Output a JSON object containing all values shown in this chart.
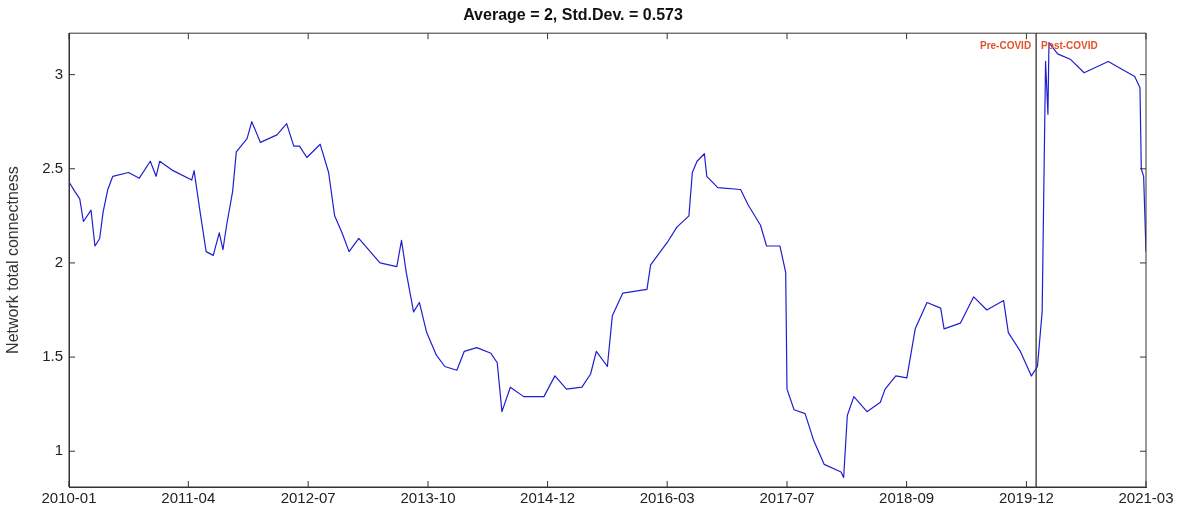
{
  "chart_data": {
    "type": "line",
    "title": "Average = 2, Std.Dev. = 0.573",
    "ylabel": "Network total connectness",
    "x": [
      "2010-01-01",
      "2010-01-23",
      "2010-02-11",
      "2010-02-25",
      "2010-03-26",
      "2010-04-10",
      "2010-04-28",
      "2010-05-11",
      "2010-05-29",
      "2010-06-17",
      "2010-08-16",
      "2010-09-26",
      "2010-11-07",
      "2010-11-29",
      "2010-12-13",
      "2011-02-02",
      "2011-04-14",
      "2011-04-23",
      "2011-05-16",
      "2011-06-08",
      "2011-07-05",
      "2011-07-28",
      "2011-08-11",
      "2011-08-25",
      "2011-09-17",
      "2011-10-01",
      "2011-11-11",
      "2011-11-29",
      "2012-01-01",
      "2012-03-04",
      "2012-04-10",
      "2012-05-07",
      "2012-05-29",
      "2012-06-26",
      "2012-08-16",
      "2012-09-17",
      "2012-10-10",
      "2012-11-07",
      "2012-12-04",
      "2013-01-10",
      "2013-04-01",
      "2013-06-04",
      "2013-06-22",
      "2013-07-10",
      "2013-08-07",
      "2013-08-29",
      "2013-09-26",
      "2013-11-02",
      "2013-12-04",
      "2014-01-19",
      "2014-02-16",
      "2014-04-05",
      "2014-05-29",
      "2014-06-22",
      "2014-07-10",
      "2014-08-11",
      "2014-10-01",
      "2014-12-17",
      "2015-01-28",
      "2015-03-13",
      "2015-05-11",
      "2015-06-13",
      "2015-07-05",
      "2015-08-16",
      "2015-09-04",
      "2015-10-14",
      "2016-01-14",
      "2016-01-28",
      "2016-04-01",
      "2016-05-07",
      "2016-06-22",
      "2016-07-05",
      "2016-07-23",
      "2016-08-20",
      "2016-08-29",
      "2016-10-10",
      "2017-01-05",
      "2017-02-02",
      "2017-03-22",
      "2017-04-14",
      "2017-06-04",
      "2017-06-26",
      "2017-07-01",
      "2017-07-28",
      "2017-09-08",
      "2017-10-10",
      "2017-11-20",
      "2018-01-23",
      "2018-02-02",
      "2018-02-16",
      "2018-03-13",
      "2018-05-02",
      "2018-06-22",
      "2018-07-10",
      "2018-08-20",
      "2018-10-01",
      "2018-11-02",
      "2018-12-17",
      "2019-02-07",
      "2019-02-20",
      "2019-04-23",
      "2019-06-13",
      "2019-08-02",
      "2019-10-05",
      "2019-10-23",
      "2019-12-08",
      "2020-01-19",
      "2020-02-11",
      "2020-02-29",
      "2020-03-13",
      "2020-03-22",
      "2020-03-26",
      "2020-04-28",
      "2020-06-17",
      "2020-08-07",
      "2020-11-07",
      "2021-02-16",
      "2021-03-08",
      "2021-03-13",
      "2021-03-22",
      "2021-03-31"
    ],
    "series": [
      {
        "color": "#1f1fd0",
        "values": [
          2.43,
          2.38,
          2.34,
          2.22,
          2.28,
          2.09,
          2.13,
          2.27,
          2.39,
          2.46,
          2.48,
          2.45,
          2.54,
          2.46,
          2.54,
          2.49,
          2.44,
          2.49,
          2.27,
          2.06,
          2.04,
          2.16,
          2.07,
          2.2,
          2.38,
          2.59,
          2.66,
          2.75,
          2.64,
          2.68,
          2.74,
          2.62,
          2.62,
          2.56,
          2.63,
          2.48,
          2.25,
          2.16,
          2.06,
          2.13,
          2.0,
          1.98,
          2.12,
          1.95,
          1.74,
          1.79,
          1.63,
          1.51,
          1.45,
          1.43,
          1.53,
          1.55,
          1.52,
          1.47,
          1.21,
          1.34,
          1.29,
          1.29,
          1.4,
          1.33,
          1.34,
          1.41,
          1.53,
          1.45,
          1.72,
          1.84,
          1.86,
          1.99,
          2.11,
          2.19,
          2.25,
          2.48,
          2.54,
          2.58,
          2.46,
          2.4,
          2.39,
          2.31,
          2.2,
          2.09,
          2.09,
          1.95,
          1.33,
          1.22,
          1.2,
          1.06,
          0.93,
          0.89,
          0.86,
          1.19,
          1.29,
          1.21,
          1.26,
          1.33,
          1.4,
          1.39,
          1.65,
          1.79,
          1.76,
          1.65,
          1.68,
          1.82,
          1.75,
          1.8,
          1.63,
          1.53,
          1.4,
          1.45,
          1.74,
          3.07,
          2.79,
          3.17,
          3.11,
          3.08,
          3.01,
          3.07,
          2.99,
          2.93,
          2.5,
          2.46,
          2.06
        ]
      }
    ],
    "xlim": [
      "2010-01-01",
      "2021-03-31"
    ],
    "xticks": [
      {
        "value": "2010-01-01",
        "label": "2010-01"
      },
      {
        "value": "2011-04-01",
        "label": "2011-04"
      },
      {
        "value": "2012-07-01",
        "label": "2012-07"
      },
      {
        "value": "2013-10-01",
        "label": "2013-10"
      },
      {
        "value": "2014-12-31",
        "label": "2014-12"
      },
      {
        "value": "2016-03-31",
        "label": "2016-03"
      },
      {
        "value": "2017-07-01",
        "label": "2017-07"
      },
      {
        "value": "2018-09-30",
        "label": "2018-09"
      },
      {
        "value": "2019-12-31",
        "label": "2019-12"
      },
      {
        "value": "2021-03-31",
        "label": "2021-03"
      }
    ],
    "ylim": [
      0.81,
      3.22
    ],
    "yticks": [
      1,
      1.5,
      2,
      2.5,
      3
    ],
    "grid": false,
    "legend": false,
    "marker": "none",
    "line_style": "solid",
    "ref_lines": [
      {
        "axis": "x",
        "value": "2020-02-06",
        "color": "#333333"
      }
    ],
    "annotations": [
      "Pre-COVID",
      "Post-COVID"
    ]
  }
}
